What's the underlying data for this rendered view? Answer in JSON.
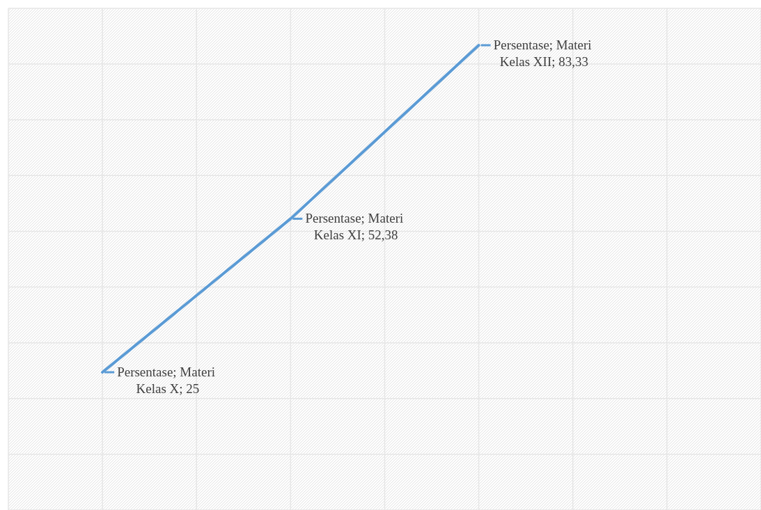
{
  "chart_data": {
    "type": "line",
    "categories": [
      null,
      null,
      null
    ],
    "series": [
      {
        "color": "#5b9bd5",
        "values": [
          25,
          52.38,
          83.33
        ],
        "value_labels": [
          "Persentase; Materi Kelas X; 25",
          "Persentase; Materi Kelas XI; 52,38",
          "Persentase; Materi Kelas XII; 83,33"
        ]
      }
    ],
    "grid": true,
    "marker": "none",
    "line_style": "solid",
    "legend": false
  }
}
